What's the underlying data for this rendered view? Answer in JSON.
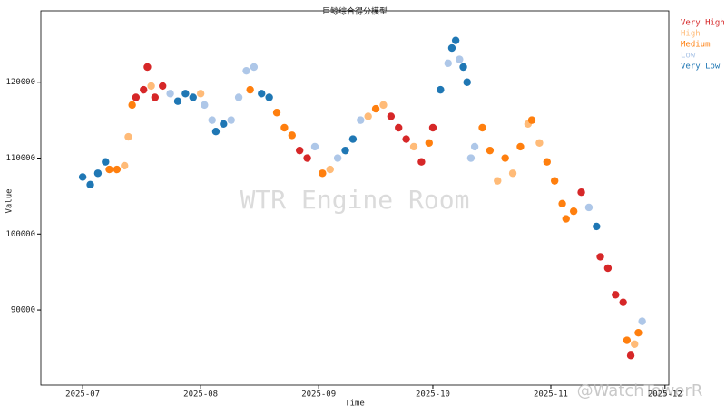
{
  "chart_data": {
    "type": "scatter",
    "title": "巨鲸综合得分模型",
    "x_label": "Time",
    "y_label": "Value",
    "annotations": [
      "WTR Engine Room",
      "@WatchTowerR"
    ],
    "xlim": [
      "2025-06-20",
      "2025-12-02"
    ],
    "ylim": [
      80100,
      129400
    ],
    "xticks": [
      {
        "value": "2025-07-01",
        "label": "2025-07"
      },
      {
        "value": "2025-08-01",
        "label": "2025-08"
      },
      {
        "value": "2025-09-01",
        "label": "2025-09"
      },
      {
        "value": "2025-10-01",
        "label": "2025-10"
      },
      {
        "value": "2025-11-01",
        "label": "2025-11"
      },
      {
        "value": "2025-12-01",
        "label": "2025-12"
      }
    ],
    "yticks": [
      90000,
      100000,
      110000,
      120000
    ],
    "legend": "outside-upper-right",
    "series": [
      {
        "name": "Very High",
        "color": "#d62728",
        "x": [
          "2025-07-15",
          "2025-07-17",
          "2025-07-18",
          "2025-07-20",
          "2025-07-22",
          "2025-08-27",
          "2025-08-29",
          "2025-09-20",
          "2025-09-22",
          "2025-09-24",
          "2025-09-28",
          "2025-10-01",
          "2025-11-09",
          "2025-11-14",
          "2025-11-16",
          "2025-11-18",
          "2025-11-20",
          "2025-11-22"
        ],
        "values": [
          118000,
          119000,
          122000,
          118000,
          119500,
          111000,
          110000,
          115500,
          114000,
          112500,
          109500,
          114000,
          105500,
          97000,
          95500,
          92000,
          91000,
          84000
        ]
      },
      {
        "name": "High",
        "color": "#ffbb78",
        "x": [
          "2025-07-12",
          "2025-07-13",
          "2025-07-19",
          "2025-08-01",
          "2025-09-04",
          "2025-09-14",
          "2025-09-18",
          "2025-09-26",
          "2025-10-18",
          "2025-10-22",
          "2025-10-26",
          "2025-10-29",
          "2025-11-23"
        ],
        "values": [
          109000,
          112800,
          119500,
          118500,
          108500,
          115500,
          117000,
          111500,
          107000,
          108000,
          114500,
          112000,
          85500
        ]
      },
      {
        "name": "Medium",
        "color": "#ff7f0e",
        "x": [
          "2025-07-08",
          "2025-07-10",
          "2025-07-14",
          "2025-08-14",
          "2025-08-21",
          "2025-08-23",
          "2025-08-25",
          "2025-09-02",
          "2025-09-16",
          "2025-09-30",
          "2025-10-14",
          "2025-10-16",
          "2025-10-20",
          "2025-10-24",
          "2025-10-27",
          "2025-10-31",
          "2025-11-02",
          "2025-11-04",
          "2025-11-05",
          "2025-11-07",
          "2025-11-21",
          "2025-11-24"
        ],
        "values": [
          108500,
          108500,
          117000,
          119000,
          116000,
          114000,
          113000,
          108000,
          116500,
          112000,
          114000,
          111000,
          110000,
          111500,
          115000,
          109500,
          107000,
          104000,
          102000,
          103000,
          86000,
          87000
        ]
      },
      {
        "name": "Low",
        "color": "#aec7e8",
        "x": [
          "2025-07-24",
          "2025-08-02",
          "2025-08-04",
          "2025-08-09",
          "2025-08-11",
          "2025-08-13",
          "2025-08-15",
          "2025-08-31",
          "2025-09-06",
          "2025-09-12",
          "2025-10-05",
          "2025-10-08",
          "2025-10-11",
          "2025-10-12",
          "2025-11-11",
          "2025-11-25"
        ],
        "values": [
          118500,
          117000,
          115000,
          115000,
          118000,
          121500,
          122000,
          111500,
          110000,
          115000,
          122500,
          123000,
          110000,
          111500,
          103500,
          88500
        ]
      },
      {
        "name": "Very Low",
        "color": "#1f77b4",
        "x": [
          "2025-07-01",
          "2025-07-03",
          "2025-07-05",
          "2025-07-07",
          "2025-07-26",
          "2025-07-28",
          "2025-07-30",
          "2025-08-05",
          "2025-08-07",
          "2025-08-17",
          "2025-08-19",
          "2025-09-08",
          "2025-09-10",
          "2025-10-03",
          "2025-10-06",
          "2025-10-07",
          "2025-10-09",
          "2025-10-10",
          "2025-11-13"
        ],
        "values": [
          107500,
          106500,
          108000,
          109500,
          117500,
          118500,
          118000,
          113500,
          114500,
          118500,
          118000,
          111000,
          112500,
          119000,
          124500,
          125500,
          122000,
          120000,
          101000
        ]
      }
    ]
  }
}
